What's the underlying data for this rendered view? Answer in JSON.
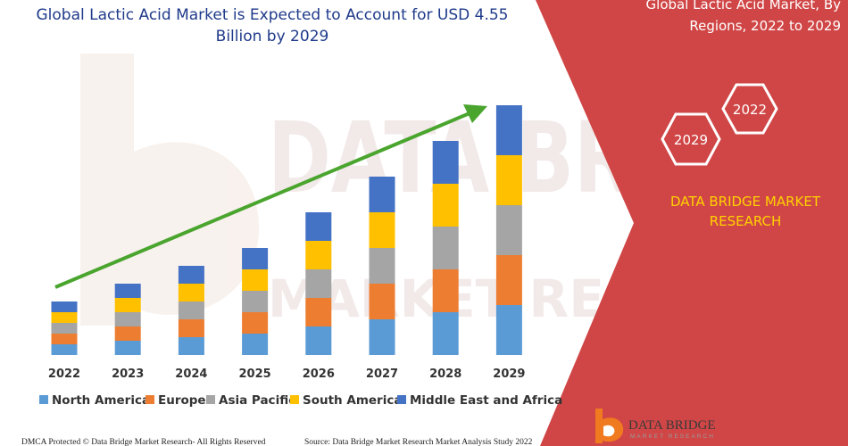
{
  "header": {
    "title_line1": "Global Lactic Acid Market is Expected to Account for USD 4.55",
    "title_line2": "Billion by 2029"
  },
  "side_panel": {
    "title_line1": "Global Lactic Acid Market, By",
    "title_line2": "Regions, 2022 to 2029",
    "hex_year_a": "2022",
    "hex_year_b": "2029",
    "brand_line1": "DATA BRIDGE MARKET",
    "brand_line2": "RESEARCH",
    "panel_color": "#d04646",
    "brand_color": "#ffd200"
  },
  "watermark": {
    "word": "DATA BRIDGE",
    "sub": "MARKET RESEARCH"
  },
  "logo": {
    "name": "DATA BRIDGE",
    "sub": "MARKET RESEARCH"
  },
  "footer": {
    "left": "DMCA Protected © Data Bridge Market Research- All Rights Reserved",
    "right": "Source: Data Bridge Market Research Market Analysis Study 2022"
  },
  "chart_data": {
    "type": "bar",
    "stacked": true,
    "title": "Global Lactic Acid Market is Expected to Account for USD 4.55 Billion by 2029",
    "xlabel": "",
    "ylabel": "",
    "y_axis_visible": false,
    "grid": false,
    "legend_position": "bottom",
    "trend_arrow": true,
    "categories": [
      "2022",
      "2023",
      "2024",
      "2025",
      "2026",
      "2027",
      "2028",
      "2029"
    ],
    "series": [
      {
        "name": "North America",
        "color": "#5b9bd5",
        "values": [
          12,
          16,
          20,
          24,
          32,
          40,
          48,
          56
        ]
      },
      {
        "name": "Europe",
        "color": "#ed7d31",
        "values": [
          12,
          16,
          20,
          24,
          32,
          40,
          48,
          56
        ]
      },
      {
        "name": "Asia Pacific",
        "color": "#a5a5a5",
        "values": [
          12,
          16,
          20,
          24,
          32,
          40,
          48,
          56
        ]
      },
      {
        "name": "South America",
        "color": "#ffc000",
        "values": [
          12,
          16,
          20,
          24,
          32,
          40,
          48,
          56
        ]
      },
      {
        "name": "Middle East and Africa",
        "color": "#4472c4",
        "values": [
          12,
          16,
          20,
          24,
          32,
          40,
          48,
          56
        ]
      }
    ],
    "ylim": [
      0,
      280
    ]
  }
}
